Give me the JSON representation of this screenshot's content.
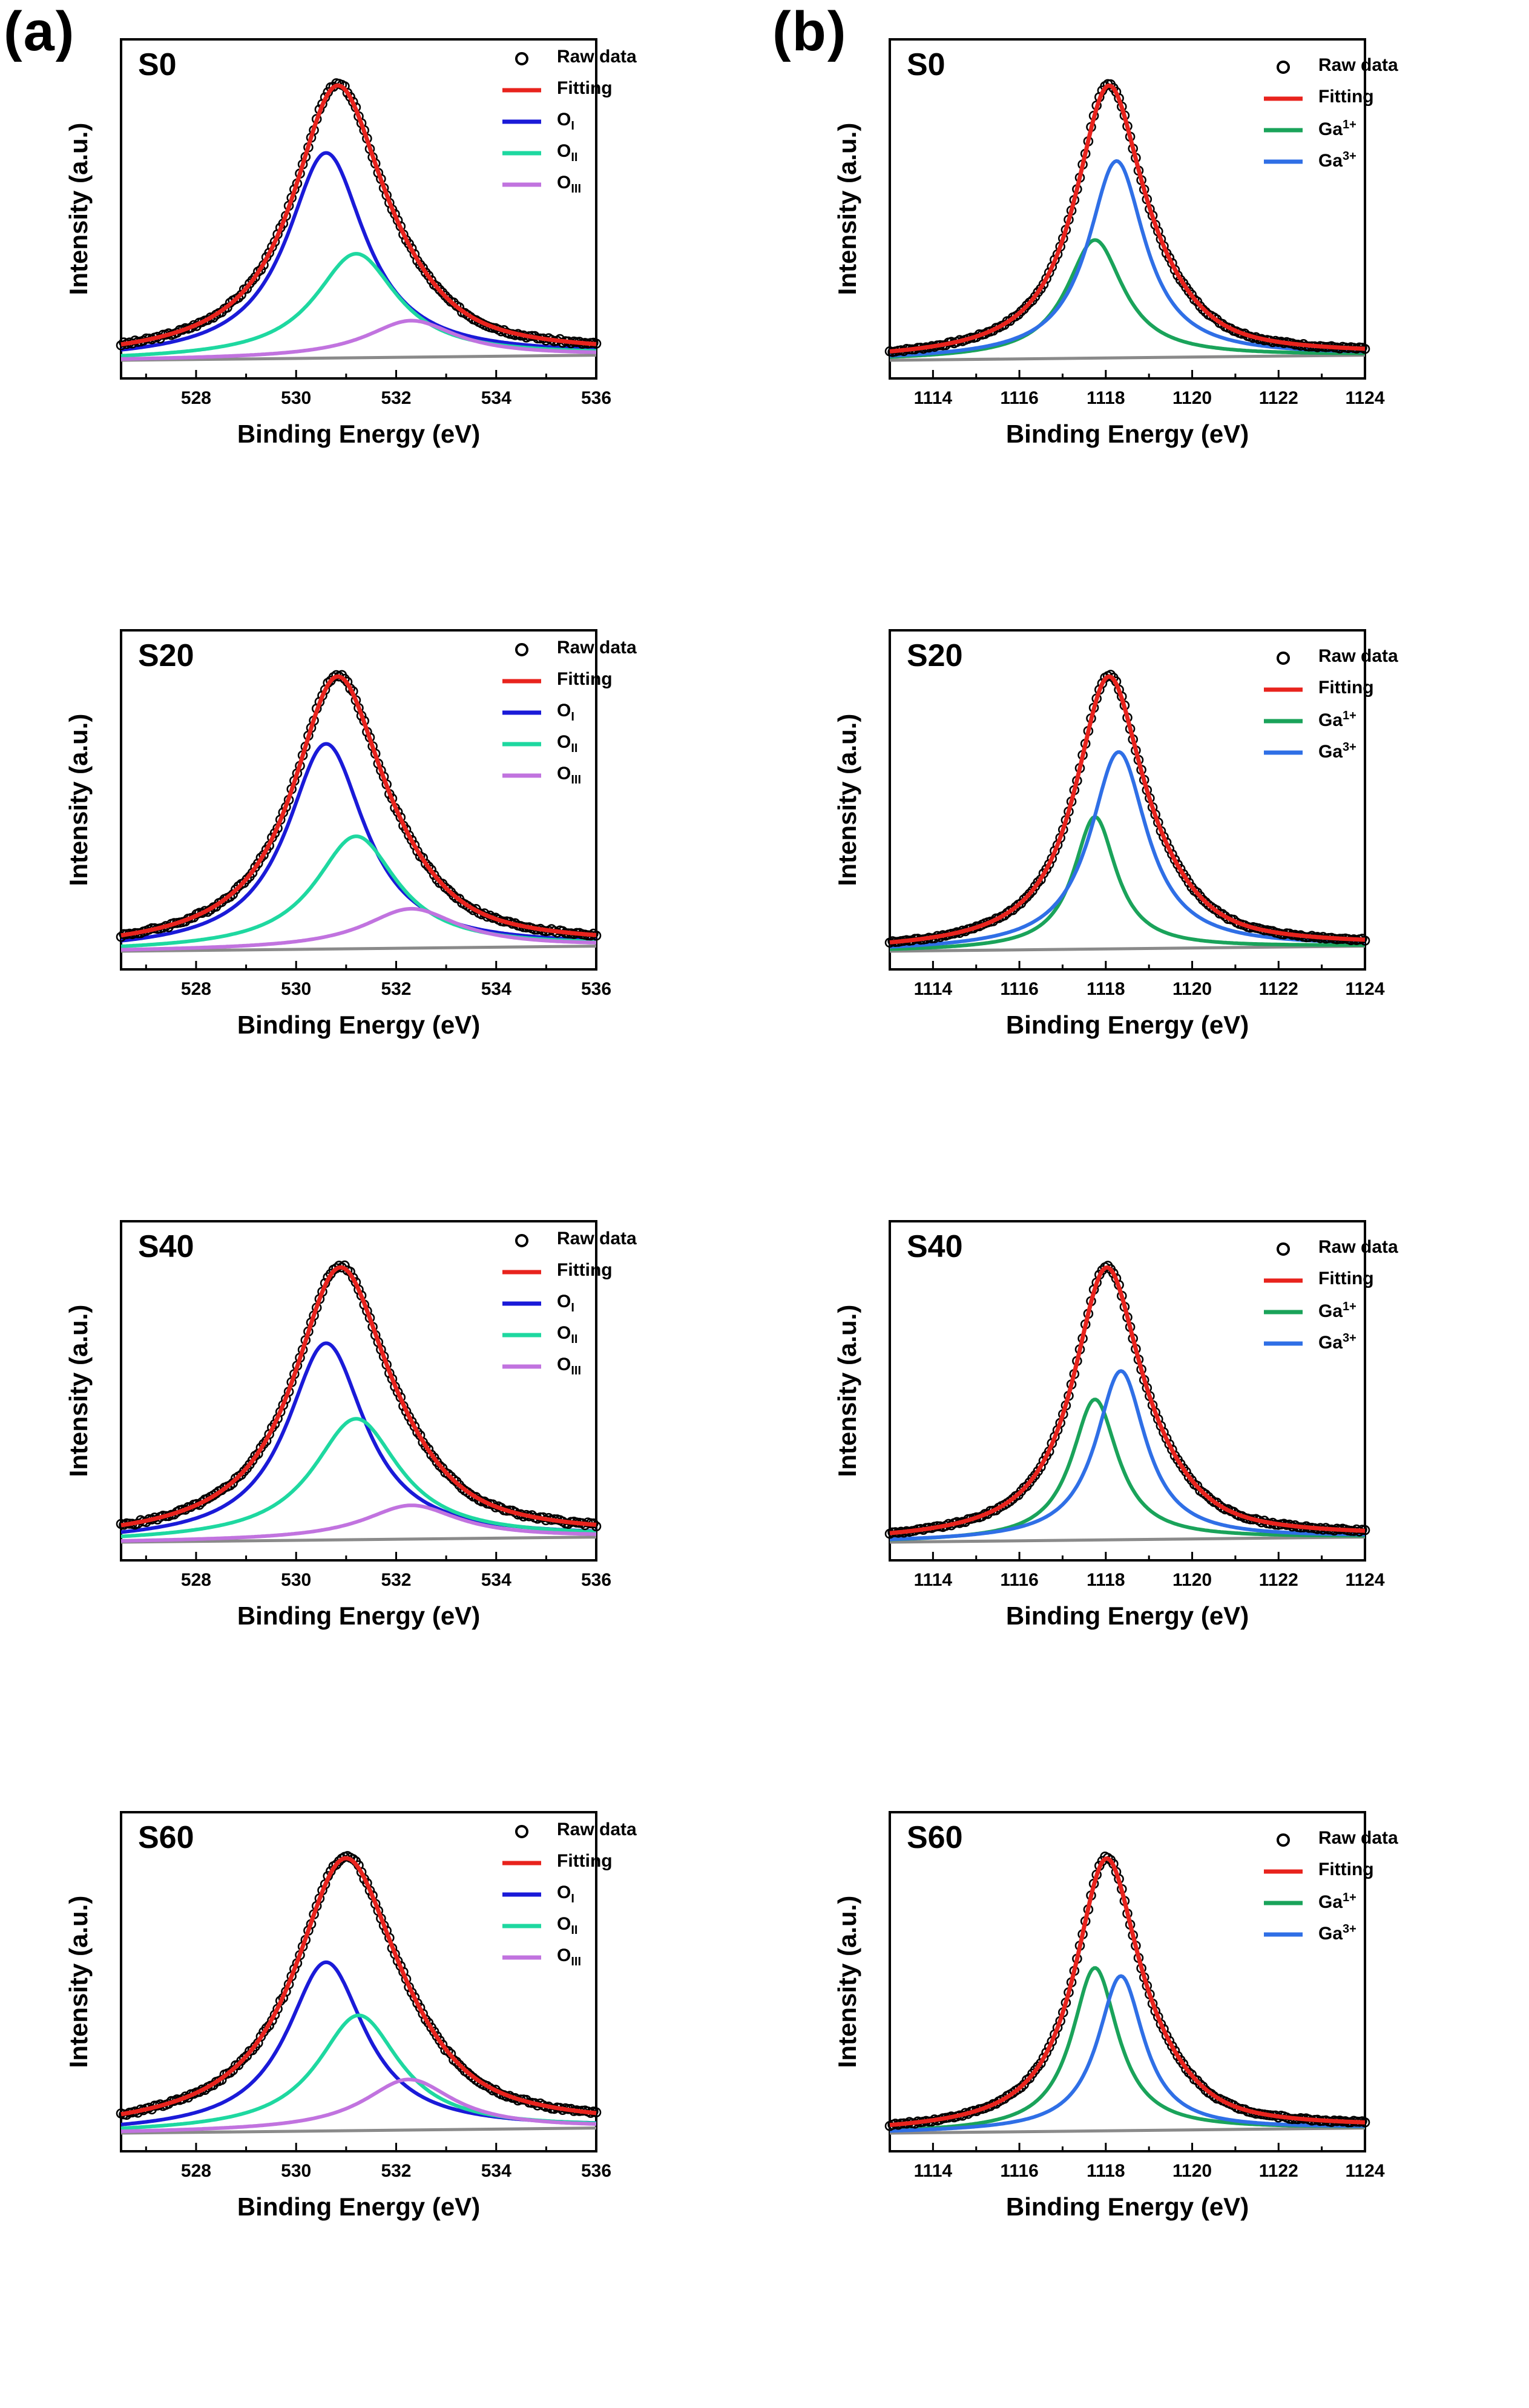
{
  "panel_labels": {
    "a": "(a)",
    "b": "(b)"
  },
  "axis_text": {
    "ylabel": "Intensity (a.u.)",
    "xlabel": "Binding Energy (eV)"
  },
  "legend_styles": [
    {
      "key": "raw",
      "color": "#000000",
      "marker": "circle"
    },
    {
      "key": "fit",
      "color": "#e8231d",
      "marker": "line"
    },
    {
      "key": "c1",
      "color_O": "#1a1ad8",
      "color_Ga": "#1aa35a"
    },
    {
      "key": "c2",
      "color_O": "#1ed8a0",
      "color_Ga": "#2f6fe6"
    },
    {
      "key": "c3",
      "color_O": "#c173df",
      "color_Ga": ""
    }
  ],
  "legend_O": [
    {
      "name": "Raw data"
    },
    {
      "name": "Fitting"
    },
    {
      "base": "O",
      "sub": "I",
      "sup": ""
    },
    {
      "base": "O",
      "sub": "II",
      "sup": ""
    },
    {
      "base": "O",
      "sub": "III",
      "sup": ""
    }
  ],
  "legend_Ga": [
    {
      "name": "Raw data"
    },
    {
      "name": "Fitting"
    },
    {
      "base": "Ga",
      "sub": "",
      "sup": "1+"
    },
    {
      "base": "Ga",
      "sub": "",
      "sup": "3+"
    }
  ],
  "chart_data": [
    {
      "id": "O-S0",
      "type": "line",
      "panel": "(a)",
      "title": "S0",
      "xlabel": "Binding Energy (eV)",
      "ylabel": "Intensity (a.u.)",
      "xlim": [
        526.5,
        536
      ],
      "xticks": [
        528,
        530,
        532,
        534,
        536
      ],
      "ylim": [
        0,
        1.12
      ],
      "baseline": {
        "x": [
          526.5,
          536
        ],
        "y": [
          0.0,
          0.02
        ]
      },
      "series": [
        {
          "name": "Fitting",
          "color": "#e8231d",
          "peak_center": 530.8,
          "peak_height": 1.0,
          "fwhm": 2.2,
          "baseline": 0.0
        },
        {
          "name": "O_I",
          "color": "#1a1ad8",
          "peak_center": 530.6,
          "peak_height": 0.73,
          "fwhm": 1.9
        },
        {
          "name": "O_II",
          "color": "#1ed8a0",
          "peak_center": 531.2,
          "peak_height": 0.37,
          "fwhm": 2.0
        },
        {
          "name": "O_III",
          "color": "#c173df",
          "peak_center": 532.3,
          "peak_height": 0.13,
          "fwhm": 2.2
        }
      ],
      "raw_data": {
        "name": "Raw data",
        "marker": "circle",
        "follows": "Fitting",
        "noise": 0.006
      }
    },
    {
      "id": "O-S20",
      "type": "line",
      "panel": "(a)",
      "title": "S20",
      "xlabel": "Binding Energy (eV)",
      "ylabel": "Intensity (a.u.)",
      "xlim": [
        526.5,
        536
      ],
      "xticks": [
        528,
        530,
        532,
        534,
        536
      ],
      "ylim": [
        0,
        1.12
      ],
      "series": [
        {
          "name": "Fitting",
          "color": "#e8231d",
          "peak_center": 530.8,
          "peak_height": 1.0,
          "fwhm": 2.2
        },
        {
          "name": "O_I",
          "color": "#1a1ad8",
          "peak_center": 530.6,
          "peak_height": 0.73,
          "fwhm": 1.9
        },
        {
          "name": "O_II",
          "color": "#1ed8a0",
          "peak_center": 531.2,
          "peak_height": 0.4,
          "fwhm": 2.0
        },
        {
          "name": "O_III",
          "color": "#c173df",
          "peak_center": 532.3,
          "peak_height": 0.14,
          "fwhm": 2.3
        }
      ],
      "raw_data": {
        "name": "Raw data",
        "marker": "circle",
        "follows": "Fitting",
        "noise": 0.006
      }
    },
    {
      "id": "O-S40",
      "type": "line",
      "panel": "(a)",
      "title": "S40",
      "xlabel": "Binding Energy (eV)",
      "ylabel": "Intensity (a.u.)",
      "xlim": [
        526.5,
        536
      ],
      "xticks": [
        528,
        530,
        532,
        534,
        536
      ],
      "ylim": [
        0,
        1.12
      ],
      "series": [
        {
          "name": "Fitting",
          "color": "#e8231d",
          "peak_center": 530.85,
          "peak_height": 1.0,
          "fwhm": 2.3
        },
        {
          "name": "O_I",
          "color": "#1a1ad8",
          "peak_center": 530.6,
          "peak_height": 0.7,
          "fwhm": 1.9
        },
        {
          "name": "O_II",
          "color": "#1ed8a0",
          "peak_center": 531.2,
          "peak_height": 0.43,
          "fwhm": 2.1
        },
        {
          "name": "O_III",
          "color": "#c173df",
          "peak_center": 532.3,
          "peak_height": 0.12,
          "fwhm": 2.3
        }
      ],
      "raw_data": {
        "name": "Raw data",
        "marker": "circle",
        "follows": "Fitting",
        "noise": 0.006
      }
    },
    {
      "id": "O-S60",
      "type": "line",
      "panel": "(a)",
      "title": "S60",
      "xlabel": "Binding Energy (eV)",
      "ylabel": "Intensity (a.u.)",
      "xlim": [
        526.5,
        536
      ],
      "xticks": [
        528,
        530,
        532,
        534,
        536
      ],
      "ylim": [
        0,
        1.12
      ],
      "series": [
        {
          "name": "Fitting",
          "color": "#e8231d",
          "peak_center": 530.95,
          "peak_height": 1.0,
          "fwhm": 2.5
        },
        {
          "name": "O_I",
          "color": "#1a1ad8",
          "peak_center": 530.6,
          "peak_height": 0.6,
          "fwhm": 1.9
        },
        {
          "name": "O_II",
          "color": "#1ed8a0",
          "peak_center": 531.25,
          "peak_height": 0.41,
          "fwhm": 2.0
        },
        {
          "name": "O_III",
          "color": "#c173df",
          "peak_center": 532.25,
          "peak_height": 0.18,
          "fwhm": 2.2
        }
      ],
      "raw_data": {
        "name": "Raw data",
        "marker": "circle",
        "follows": "Fitting",
        "noise": 0.006
      }
    },
    {
      "id": "Ga-S0",
      "type": "line",
      "panel": "(b)",
      "title": "S0",
      "xlabel": "Binding Energy (eV)",
      "ylabel": "Intensity (a.u.)",
      "xlim": [
        1113,
        1124
      ],
      "xticks": [
        1114,
        1116,
        1118,
        1120,
        1122,
        1124
      ],
      "ylim": [
        0,
        1.12
      ],
      "series": [
        {
          "name": "Fitting",
          "color": "#e8231d",
          "peak_center": 1118.05,
          "peak_height": 1.0,
          "fwhm": 1.9
        },
        {
          "name": "Ga1+",
          "color": "#1aa35a",
          "peak_center": 1117.75,
          "peak_height": 0.42,
          "fwhm": 1.6
        },
        {
          "name": "Ga3+",
          "color": "#2f6fe6",
          "peak_center": 1118.25,
          "peak_height": 0.7,
          "fwhm": 1.6
        }
      ],
      "raw_data": {
        "name": "Raw data",
        "marker": "circle",
        "follows": "Fitting",
        "noise": 0.004
      }
    },
    {
      "id": "Ga-S20",
      "type": "line",
      "panel": "(b)",
      "title": "S20",
      "xlabel": "Binding Energy (eV)",
      "ylabel": "Intensity (a.u.)",
      "xlim": [
        1113,
        1124
      ],
      "xticks": [
        1114,
        1116,
        1118,
        1120,
        1122,
        1124
      ],
      "ylim": [
        0,
        1.12
      ],
      "series": [
        {
          "name": "Fitting",
          "color": "#e8231d",
          "peak_center": 1118.05,
          "peak_height": 1.0,
          "fwhm": 1.9
        },
        {
          "name": "Ga1+",
          "color": "#1aa35a",
          "peak_center": 1117.75,
          "peak_height": 0.47,
          "fwhm": 1.2
        },
        {
          "name": "Ga3+",
          "color": "#2f6fe6",
          "peak_center": 1118.3,
          "peak_height": 0.7,
          "fwhm": 1.6
        }
      ],
      "raw_data": {
        "name": "Raw data",
        "marker": "circle",
        "follows": "Fitting",
        "noise": 0.004
      }
    },
    {
      "id": "Ga-S40",
      "type": "line",
      "panel": "(b)",
      "title": "S40",
      "xlabel": "Binding Energy (eV)",
      "ylabel": "Intensity (a.u.)",
      "xlim": [
        1113,
        1124
      ],
      "xticks": [
        1114,
        1116,
        1118,
        1120,
        1122,
        1124
      ],
      "ylim": [
        0,
        1.12
      ],
      "series": [
        {
          "name": "Fitting",
          "color": "#e8231d",
          "peak_center": 1118.0,
          "peak_height": 1.0,
          "fwhm": 1.9
        },
        {
          "name": "Ga1+",
          "color": "#1aa35a",
          "peak_center": 1117.75,
          "peak_height": 0.5,
          "fwhm": 1.3
        },
        {
          "name": "Ga3+",
          "color": "#2f6fe6",
          "peak_center": 1118.35,
          "peak_height": 0.6,
          "fwhm": 1.4
        }
      ],
      "raw_data": {
        "name": "Raw data",
        "marker": "circle",
        "follows": "Fitting",
        "noise": 0.004
      }
    },
    {
      "id": "Ga-S60",
      "type": "line",
      "panel": "(b)",
      "title": "S60",
      "xlabel": "Binding Energy (eV)",
      "ylabel": "Intensity (a.u.)",
      "xlim": [
        1113,
        1124
      ],
      "xticks": [
        1114,
        1116,
        1118,
        1120,
        1122,
        1124
      ],
      "ylim": [
        0,
        1.12
      ],
      "series": [
        {
          "name": "Fitting",
          "color": "#e8231d",
          "peak_center": 1118.0,
          "peak_height": 1.0,
          "fwhm": 1.8
        },
        {
          "name": "Ga1+",
          "color": "#1aa35a",
          "peak_center": 1117.75,
          "peak_height": 0.58,
          "fwhm": 1.3
        },
        {
          "name": "Ga3+",
          "color": "#2f6fe6",
          "peak_center": 1118.35,
          "peak_height": 0.55,
          "fwhm": 1.3
        }
      ],
      "raw_data": {
        "name": "Raw data",
        "marker": "circle",
        "follows": "Fitting",
        "noise": 0.004
      }
    }
  ]
}
